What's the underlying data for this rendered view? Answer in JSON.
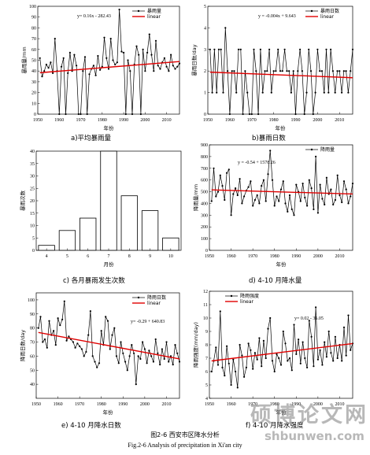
{
  "figure": {
    "caption_cn": "图2-6 西安市区降水分析",
    "caption_en": "Fig.2-6 Analysis of precipitation in Xi'an city"
  },
  "watermark": {
    "line1": "硕博论文网",
    "line2": "shbunwen.com"
  },
  "colors": {
    "series": "#000000",
    "trend": "#e00000",
    "bar_fill": "#ffffff",
    "bar_stroke": "#000000"
  },
  "chart_data": [
    {
      "id": "a",
      "type": "line",
      "caption": "a)平均暴雨量",
      "xlabel": "年份",
      "ylabel": "暴雨量/mm",
      "xlim": [
        1950,
        2016
      ],
      "ylim": [
        0,
        100
      ],
      "xticks": [
        1950,
        1960,
        1970,
        1980,
        1990,
        2000,
        2010
      ],
      "yticks": [
        0,
        10,
        20,
        30,
        40,
        50,
        60,
        70,
        80,
        90,
        100
      ],
      "equation": "y= 0.16x - 282.43",
      "trend": {
        "slope": 0.16,
        "intercept": -282.43
      },
      "legend": [
        {
          "name": "暴雨量",
          "kind": "series"
        },
        {
          "name": "linear",
          "kind": "trend"
        }
      ],
      "legend_position": "top-right",
      "series": [
        {
          "name": "暴雨量",
          "x_start": 1951,
          "values": [
            52,
            35,
            40,
            46,
            43,
            48,
            38,
            70,
            40,
            0,
            44,
            52,
            0,
            38,
            57,
            40,
            55,
            45,
            0,
            0,
            40,
            53,
            0,
            37,
            42,
            45,
            36,
            54,
            41,
            44,
            71,
            52,
            42,
            70,
            50,
            46,
            48,
            97,
            58,
            57,
            0,
            50,
            40,
            0,
            46,
            63,
            55,
            0,
            60,
            40,
            57,
            74,
            55,
            40,
            68,
            45,
            42,
            48,
            52,
            44,
            40,
            55,
            45,
            42,
            44,
            47
          ]
        }
      ]
    },
    {
      "id": "b",
      "type": "line",
      "caption": "b)暴雨日数",
      "xlabel": "年份",
      "ylabel": "暴雨日数/day",
      "xlim": [
        1950,
        2016
      ],
      "ylim": [
        0,
        5
      ],
      "xticks": [
        1950,
        1960,
        1970,
        1980,
        1990,
        2000,
        2010
      ],
      "yticks": [
        0,
        1,
        2,
        3,
        4,
        5
      ],
      "equation": "y = -0.004x + 9.643",
      "trend": {
        "slope": -0.004,
        "intercept": 9.643
      },
      "legend": [
        {
          "name": "暴雨日数",
          "kind": "series"
        },
        {
          "name": "linear",
          "kind": "trend"
        }
      ],
      "legend_position": "top-right",
      "series": [
        {
          "name": "暴雨日数",
          "x_start": 1951,
          "values": [
            3,
            1,
            3,
            1,
            3,
            3,
            1,
            4,
            2,
            0,
            2,
            2,
            1,
            3,
            3,
            0,
            2,
            1,
            0,
            0,
            3,
            2,
            0,
            3,
            1,
            2,
            2,
            3,
            1,
            2,
            2,
            3,
            2,
            2,
            3,
            2,
            2,
            1,
            2,
            0,
            2,
            3,
            2,
            0,
            1,
            3,
            2,
            0,
            1,
            3,
            2,
            2,
            1,
            3,
            1,
            3,
            2,
            1,
            2,
            2,
            1,
            2,
            2,
            1,
            2,
            3
          ]
        }
      ]
    },
    {
      "id": "c",
      "type": "bar",
      "caption": "c) 各月暴雨发生次数",
      "xlabel": "月份",
      "ylabel": "暴雨次数",
      "ylim": [
        0,
        40
      ],
      "yticks": [
        0,
        5,
        10,
        15,
        20,
        25,
        30,
        35,
        40
      ],
      "categories": [
        "4",
        "5",
        "6",
        "7",
        "8",
        "9",
        "10"
      ],
      "values": [
        2,
        8,
        13,
        40,
        22,
        16,
        5
      ]
    },
    {
      "id": "d",
      "type": "line",
      "caption": "d) 4-10 月降水量",
      "xlabel": "年份",
      "ylabel": "降雨量/mm",
      "xlim": [
        1950,
        2016
      ],
      "ylim": [
        0,
        900
      ],
      "xticks": [
        1950,
        1960,
        1970,
        1980,
        1990,
        2000,
        2010
      ],
      "yticks": [
        0,
        100,
        200,
        300,
        400,
        500,
        600,
        700,
        800,
        900
      ],
      "equation": "y = -0.54 + 1578.26",
      "trend": {
        "slope": -0.54,
        "intercept": 1578.26
      },
      "legend": [
        {
          "name": "降雨量",
          "kind": "series"
        }
      ],
      "legend_position": "top-right",
      "series": [
        {
          "name": "降雨量",
          "x_start": 1951,
          "values": [
            420,
            700,
            460,
            500,
            640,
            550,
            430,
            660,
            690,
            300,
            480,
            530,
            470,
            610,
            400,
            460,
            510,
            540,
            590,
            380,
            430,
            470,
            400,
            550,
            600,
            420,
            650,
            850,
            600,
            380,
            460,
            420,
            520,
            590,
            400,
            330,
            470,
            350,
            300,
            560,
            500,
            420,
            570,
            450,
            380,
            600,
            530,
            350,
            800,
            320,
            560,
            440,
            390,
            620,
            480,
            520,
            390,
            430,
            640,
            470,
            410,
            590,
            520,
            400,
            460,
            570
          ]
        }
      ]
    },
    {
      "id": "e",
      "type": "line",
      "caption": "e) 4-10 月降水日数",
      "xlabel": "年份",
      "ylabel": "降雨日数/day",
      "xlim": [
        1950,
        2016
      ],
      "ylim": [
        30,
        105
      ],
      "xticks": [
        1950,
        1960,
        1970,
        1980,
        1990,
        2000,
        2010
      ],
      "yticks": [
        40,
        50,
        60,
        70,
        80,
        90,
        100
      ],
      "equation": "y= -0.29 + 640.83",
      "trend": {
        "slope": -0.29,
        "intercept": 640.83
      },
      "legend": [
        {
          "name": "降雨日数",
          "kind": "series"
        },
        {
          "name": "linear",
          "kind": "trend"
        }
      ],
      "legend_position": "top-right",
      "series": [
        {
          "name": "降雨日数",
          "x_start": 1951,
          "values": [
            80,
            88,
            70,
            72,
            66,
            85,
            75,
            78,
            68,
            87,
            82,
            86,
            99,
            71,
            74,
            72,
            70,
            66,
            69,
            67,
            65,
            60,
            63,
            75,
            92,
            60,
            56,
            52,
            55,
            78,
            68,
            88,
            85,
            65,
            75,
            80,
            60,
            55,
            70,
            62,
            56,
            50,
            60,
            68,
            62,
            40,
            60,
            58,
            70,
            65,
            55,
            64,
            60,
            56,
            72,
            62,
            54,
            65,
            58,
            70,
            56,
            60,
            54,
            68,
            62,
            56
          ]
        }
      ]
    },
    {
      "id": "f",
      "type": "line",
      "caption": "f) 4-10 月降水强度",
      "xlabel": "年份",
      "ylabel": "降雨强度(mm/day)",
      "xlim": [
        1950,
        2016
      ],
      "ylim": [
        4,
        12
      ],
      "xticks": [
        1950,
        1960,
        1970,
        1980,
        1990,
        2000,
        2010
      ],
      "yticks": [
        4,
        5,
        6,
        7,
        8,
        9,
        10,
        11,
        12
      ],
      "equation": "y= 0.02 - 36.05",
      "trend": {
        "slope": 0.02,
        "intercept": -36.05
      },
      "legend": [
        {
          "name": "降雨强度",
          "kind": "series"
        },
        {
          "name": "linear",
          "kind": "trend"
        }
      ],
      "legend_position": "top-left",
      "series": [
        {
          "name": "降雨强度",
          "x_start": 1951,
          "values": [
            6.0,
            6.8,
            7.8,
            6.5,
            10.5,
            6.3,
            5.7,
            7.9,
            6.6,
            5.0,
            6.9,
            6.0,
            4.8,
            8.0,
            7.2,
            5.6,
            6.3,
            8.1,
            7.6,
            6.2,
            7.4,
            6.9,
            8.5,
            6.4,
            8.3,
            7.0,
            9.2,
            10.0,
            6.8,
            6.0,
            7.3,
            7.0,
            6.5,
            9.0,
            8.1,
            6.8,
            7.0,
            6.1,
            9.5,
            7.3,
            8.4,
            6.6,
            8.2,
            7.0,
            6.3,
            9.8,
            8.6,
            6.4,
            10.8,
            6.9,
            7.6,
            6.5,
            8.2,
            7.1,
            9.0,
            7.4,
            6.8,
            8.6,
            7.0,
            8.0,
            6.8,
            9.3,
            7.2,
            10.2,
            7.6,
            8.1
          ]
        }
      ]
    }
  ]
}
